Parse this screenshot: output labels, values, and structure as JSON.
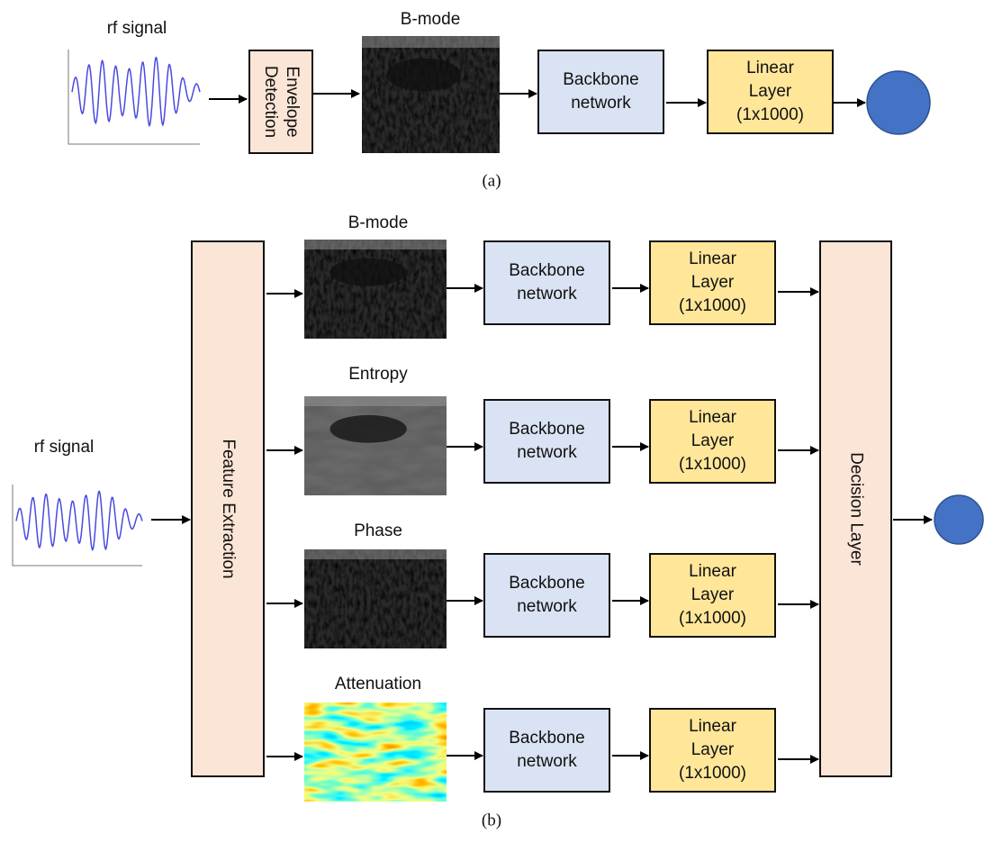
{
  "panel_a": {
    "input_label": "rf signal",
    "envelope": [
      "Envelope",
      "Detection"
    ],
    "image_label": "B-mode",
    "backbone": [
      "Backbone",
      "network"
    ],
    "linear": [
      "Linear",
      "Layer",
      "(1x1000)"
    ],
    "caption": "(a)"
  },
  "panel_b": {
    "input_label": "rf signal",
    "feature_extraction": "Feature Extraction",
    "branches": [
      {
        "image_label": "B-mode",
        "backbone": [
          "Backbone",
          "network"
        ],
        "linear": [
          "Linear",
          "Layer",
          "(1x1000)"
        ]
      },
      {
        "image_label": "Entropy",
        "backbone": [
          "Backbone",
          "network"
        ],
        "linear": [
          "Linear",
          "Layer",
          "(1x1000)"
        ]
      },
      {
        "image_label": "Phase",
        "backbone": [
          "Backbone",
          "network"
        ],
        "linear": [
          "Linear",
          "Layer",
          "(1x1000)"
        ]
      },
      {
        "image_label": "Attenuation",
        "backbone": [
          "Backbone",
          "network"
        ],
        "linear": [
          "Linear",
          "Layer",
          "(1x1000)"
        ]
      }
    ],
    "decision": "Decision Layer",
    "caption": "(b)"
  }
}
